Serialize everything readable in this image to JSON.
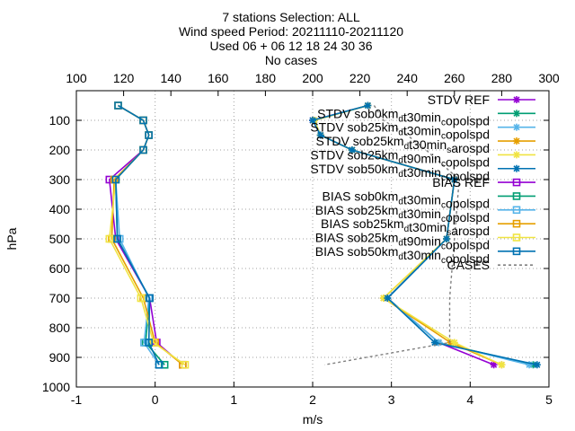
{
  "chart_data": {
    "type": "line",
    "title_lines": [
      "7 stations Selection: ALL",
      "Wind speed  Period: 20211110-20211120",
      "Used 06 + 06 12 18 24 30 36",
      "No cases"
    ],
    "xlabel": "m/s",
    "ylabel": "hPa",
    "xlim": [
      -1,
      5
    ],
    "ylim": [
      1000,
      0
    ],
    "x2lim": [
      100,
      300
    ],
    "x_ticks": [
      "-1",
      "0",
      "1",
      "2",
      "3",
      "4",
      "5"
    ],
    "x2_ticks": [
      "100",
      "120",
      "140",
      "160",
      "180",
      "200",
      "220",
      "240",
      "260",
      "280",
      "300"
    ],
    "y_ticks": [
      "100",
      "200",
      "300",
      "400",
      "500",
      "600",
      "700",
      "800",
      "900",
      "1000"
    ],
    "grid": true,
    "legend_position": "top-right",
    "levels": [
      50,
      100,
      150,
      200,
      300,
      500,
      700,
      850,
      925
    ],
    "series": [
      {
        "name": "STDV REF",
        "name_parts": [
          [
            "STDV REF",
            ""
          ]
        ],
        "color": "#9400d3",
        "marker": "star",
        "dash": false,
        "values": [
          2.7,
          2.0,
          2.1,
          2.5,
          3.8,
          3.7,
          2.95,
          3.6,
          4.3
        ]
      },
      {
        "name": "STDV sob0km_dt30min_copolspd",
        "name_parts": [
          [
            "STDV sob0km",
            ""
          ],
          [
            "d",
            "sub"
          ],
          [
            "t30min",
            ""
          ],
          [
            "c",
            "sub"
          ],
          [
            "opolspd",
            ""
          ]
        ],
        "color": "#009e73",
        "marker": "star",
        "dash": false,
        "values": [
          2.7,
          2.02,
          2.1,
          2.5,
          3.8,
          3.7,
          2.95,
          3.6,
          4.8
        ]
      },
      {
        "name": "STDV sob25km_dt30min_copolspd",
        "name_parts": [
          [
            "STDV sob25km",
            ""
          ],
          [
            "d",
            "sub"
          ],
          [
            "t30min",
            ""
          ],
          [
            "c",
            "sub"
          ],
          [
            "opolspd",
            ""
          ]
        ],
        "color": "#56b4e9",
        "marker": "star",
        "dash": false,
        "values": [
          2.7,
          2.02,
          2.1,
          2.5,
          3.8,
          3.7,
          2.95,
          3.6,
          4.75
        ]
      },
      {
        "name": "STDV sob25km_dt30min_sarospd",
        "name_parts": [
          [
            "STDV sob25km",
            ""
          ],
          [
            "d",
            "sub"
          ],
          [
            "t30min",
            ""
          ],
          [
            "s",
            "sub"
          ],
          [
            "arospd",
            ""
          ]
        ],
        "color": "#e69f00",
        "marker": "star",
        "dash": false,
        "values": [
          2.7,
          2.02,
          2.1,
          2.5,
          3.8,
          3.7,
          2.9,
          3.75,
          4.4
        ]
      },
      {
        "name": "STDV sob25km_dt90min_copolspd",
        "name_parts": [
          [
            "STDV sob25km",
            ""
          ],
          [
            "d",
            "sub"
          ],
          [
            "t90min",
            ""
          ],
          [
            "c",
            "sub"
          ],
          [
            "opolspd",
            ""
          ]
        ],
        "color": "#f0e442",
        "marker": "star",
        "dash": false,
        "values": [
          2.7,
          2.02,
          2.1,
          2.5,
          3.8,
          3.7,
          2.9,
          3.8,
          4.4
        ]
      },
      {
        "name": "STDV sob50km_dt30min_copolspd",
        "name_parts": [
          [
            "STDV sob50km",
            ""
          ],
          [
            "d",
            "sub"
          ],
          [
            "t30min",
            ""
          ],
          [
            "c",
            "sub"
          ],
          [
            "opolspd",
            ""
          ]
        ],
        "color": "#0072b2",
        "marker": "star",
        "dash": false,
        "values": [
          2.7,
          2.0,
          2.1,
          2.5,
          3.8,
          3.7,
          2.95,
          3.55,
          4.85
        ]
      },
      {
        "name": "BIAS REF",
        "name_parts": [
          [
            "BIAS REF",
            ""
          ]
        ],
        "color": "#9400d3",
        "marker": "square",
        "dash": false,
        "values": [
          -0.47,
          -0.15,
          -0.08,
          -0.15,
          -0.58,
          -0.5,
          -0.07,
          0.02,
          0.35
        ]
      },
      {
        "name": "BIAS sob0km_dt30min_copolspd",
        "name_parts": [
          [
            "BIAS sob0km",
            ""
          ],
          [
            "d",
            "sub"
          ],
          [
            "t30min",
            ""
          ],
          [
            "c",
            "sub"
          ],
          [
            "opolspd",
            ""
          ]
        ],
        "color": "#009e73",
        "marker": "square",
        "dash": false,
        "values": [
          -0.47,
          -0.15,
          -0.08,
          -0.15,
          -0.5,
          -0.48,
          -0.07,
          -0.12,
          0.12
        ]
      },
      {
        "name": "BIAS sob25km_dt30min_copolspd",
        "name_parts": [
          [
            "BIAS sob25km",
            ""
          ],
          [
            "d",
            "sub"
          ],
          [
            "t30min",
            ""
          ],
          [
            "c",
            "sub"
          ],
          [
            "opolspd",
            ""
          ]
        ],
        "color": "#56b4e9",
        "marker": "square",
        "dash": false,
        "values": [
          -0.47,
          -0.15,
          -0.08,
          -0.15,
          -0.5,
          -0.45,
          -0.08,
          -0.14,
          0.05
        ]
      },
      {
        "name": "BIAS sob25km_dt30min_sarospd",
        "name_parts": [
          [
            "BIAS sob25km",
            ""
          ],
          [
            "d",
            "sub"
          ],
          [
            "t30min",
            ""
          ],
          [
            "s",
            "sub"
          ],
          [
            "arospd",
            ""
          ]
        ],
        "color": "#e69f00",
        "marker": "square",
        "dash": false,
        "values": [
          -0.47,
          -0.15,
          -0.08,
          -0.15,
          -0.52,
          -0.55,
          -0.15,
          0.0,
          0.35
        ]
      },
      {
        "name": "BIAS sob25km_dt90min_copolspd",
        "name_parts": [
          [
            "BIAS sob25km",
            ""
          ],
          [
            "d",
            "sub"
          ],
          [
            "t90min",
            ""
          ],
          [
            "c",
            "sub"
          ],
          [
            "opolspd",
            ""
          ]
        ],
        "color": "#f0e442",
        "marker": "square",
        "dash": false,
        "values": [
          -0.47,
          -0.15,
          -0.08,
          -0.15,
          -0.5,
          -0.58,
          -0.18,
          -0.02,
          0.38
        ]
      },
      {
        "name": "BIAS sob50km_dt30min_copolspd",
        "name_parts": [
          [
            "BIAS sob50km",
            ""
          ],
          [
            "d",
            "sub"
          ],
          [
            "t30min",
            ""
          ],
          [
            "c",
            "sub"
          ],
          [
            "opolspd",
            ""
          ]
        ],
        "color": "#0072b2",
        "marker": "square",
        "dash": false,
        "values": [
          -0.47,
          -0.15,
          -0.08,
          -0.15,
          -0.5,
          -0.48,
          -0.07,
          -0.08,
          0.05
        ]
      },
      {
        "name": "CASES",
        "name_parts": [
          [
            "CASES",
            ""
          ]
        ],
        "color": "#808080",
        "marker": "none",
        "dash": true,
        "x_axis": "top",
        "values": [
          226,
          230,
          240,
          248,
          262,
          260,
          258,
          258,
          205
        ]
      }
    ]
  }
}
